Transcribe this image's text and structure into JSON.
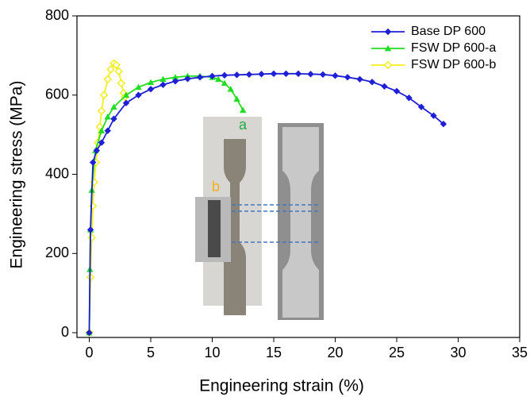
{
  "chart_data": {
    "type": "line",
    "x_label": "Engineering strain (%)",
    "y_label": "Engineering stress (MPa)",
    "xlim": [
      -1,
      35
    ],
    "ylim": [
      -12,
      800
    ],
    "xticks": [
      0,
      5,
      10,
      15,
      20,
      25,
      30,
      35
    ],
    "yticks": [
      0,
      200,
      400,
      600,
      800
    ],
    "legend": "upper right",
    "annotations": [
      "a",
      "b"
    ],
    "series": [
      {
        "name": "Base DP 600",
        "color": "#1f1fd6",
        "marker": "diamond",
        "x": [
          0,
          0.1,
          0.3,
          0.6,
          1,
          1.5,
          2,
          3,
          4,
          5,
          6,
          7,
          8,
          9,
          10,
          11,
          12,
          13,
          14,
          15,
          16,
          17,
          18,
          19,
          20,
          21,
          22,
          23,
          24,
          25,
          26,
          27,
          28,
          28.8
        ],
        "values": [
          0,
          260,
          430,
          460,
          480,
          510,
          540,
          580,
          600,
          615,
          626,
          635,
          641,
          645,
          648,
          650,
          651,
          652,
          653,
          654,
          654,
          654,
          653,
          652,
          649,
          645,
          640,
          633,
          622,
          610,
          593,
          570,
          548,
          527
        ]
      },
      {
        "name": "FSW DP 600-a",
        "color": "#22dd22",
        "marker": "triangle",
        "x": [
          0,
          0.05,
          0.1,
          0.2,
          0.5,
          1,
          1.5,
          2,
          3,
          4,
          5,
          6,
          7,
          8,
          9,
          10,
          10.5,
          11,
          11.5,
          12,
          12.5
        ],
        "values": [
          0,
          160,
          260,
          360,
          460,
          510,
          545,
          570,
          600,
          620,
          632,
          640,
          645,
          648,
          648,
          645,
          640,
          630,
          615,
          590,
          562
        ]
      },
      {
        "name": "FSW DP 600-b",
        "color": "#f2ef1a",
        "marker": "diamond-open",
        "x": [
          0,
          0.1,
          0.2,
          0.3,
          0.4,
          0.55,
          0.7,
          0.85,
          1,
          1.2,
          1.5,
          1.75,
          2,
          2.2,
          2.4,
          2.6,
          2.8,
          2.9
        ],
        "values": [
          0,
          140,
          240,
          320,
          380,
          430,
          480,
          520,
          560,
          600,
          640,
          665,
          680,
          676,
          660,
          630,
          605,
          595
        ]
      }
    ]
  }
}
